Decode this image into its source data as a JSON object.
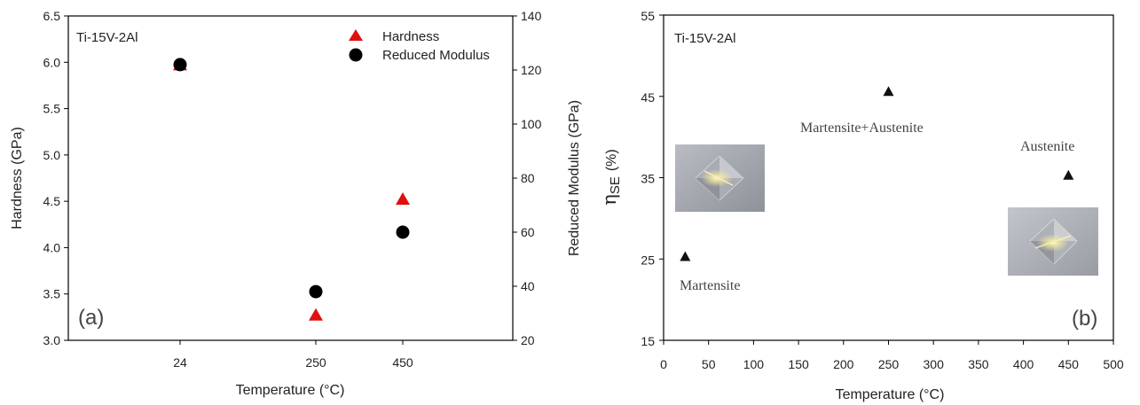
{
  "colors": {
    "hardness": "#e01010",
    "modulus": "#000000",
    "eta": "#111111",
    "axis": "#000000"
  },
  "chart_data": [
    {
      "type": "scatter",
      "panel_label": "(a)",
      "annotation": "Ti-15V-2Al",
      "xlabel": "Temperature (°C)",
      "ylabel": "Hardness (GPa)",
      "y2label": "Reduced Modulus (GPa)",
      "categories": [
        "24",
        "250",
        "450"
      ],
      "ylim": [
        3.0,
        6.5
      ],
      "y2lim": [
        20,
        140
      ],
      "yticks": [
        "3.0",
        "3.5",
        "4.0",
        "4.5",
        "5.0",
        "5.5",
        "6.0",
        "6.5"
      ],
      "y2ticks": [
        "20",
        "40",
        "60",
        "80",
        "100",
        "120",
        "140"
      ],
      "legend_position": "top-right",
      "series": [
        {
          "name": "Hardness",
          "axis": "left",
          "marker": "triangle",
          "color": "#e01010",
          "values": [
            5.97,
            3.27,
            4.52
          ]
        },
        {
          "name": "Reduced Modulus",
          "axis": "right",
          "marker": "circle",
          "color": "#000000",
          "values": [
            122,
            38,
            60
          ]
        }
      ]
    },
    {
      "type": "scatter",
      "panel_label": "(b)",
      "annotation": "Ti-15V-2Al",
      "xlabel": "Temperature (°C)",
      "ylabel_symbol": "η",
      "ylabel_sub": "SE",
      "ylabel_unit": "(%)",
      "xlim": [
        0,
        500
      ],
      "ylim": [
        15,
        55
      ],
      "xticks": [
        "0",
        "50",
        "100",
        "150",
        "200",
        "250",
        "300",
        "350",
        "400",
        "450",
        "500"
      ],
      "yticks": [
        "15",
        "25",
        "35",
        "45",
        "55"
      ],
      "series": [
        {
          "marker": "triangle",
          "color": "#111111",
          "x": [
            24,
            250,
            450
          ],
          "y": [
            25.3,
            45.6,
            35.3
          ]
        }
      ],
      "phase_labels": [
        "Martensite",
        "Martensite+Austenite",
        "Austenite"
      ]
    }
  ]
}
